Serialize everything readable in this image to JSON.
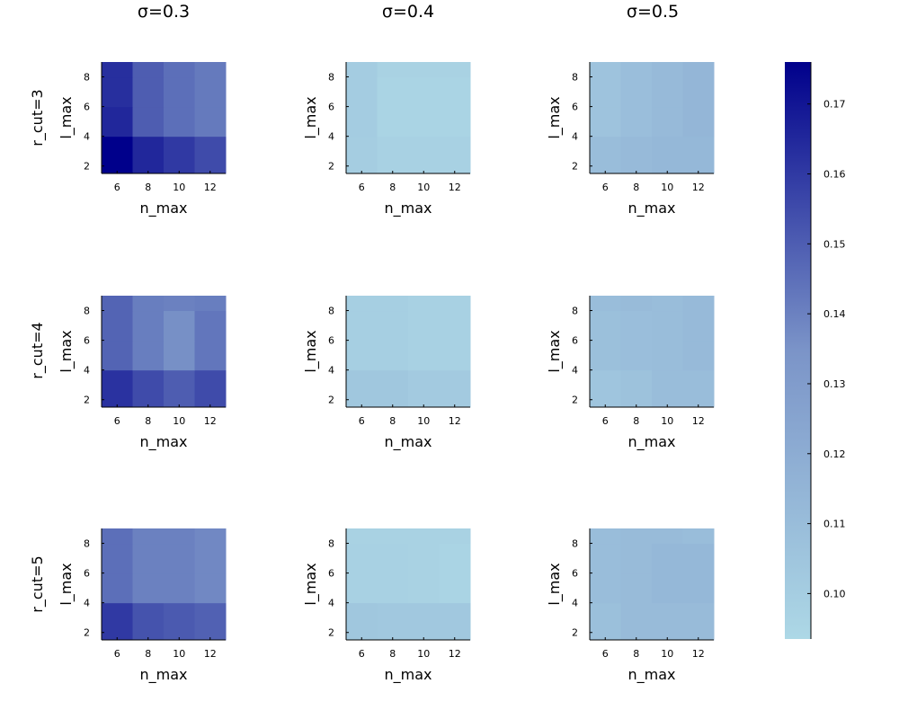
{
  "chart_data": {
    "type": "heatmap",
    "layout": "3x3 grid of heatmaps with shared colorbar",
    "column_titles": [
      "σ=0.3",
      "σ=0.4",
      "σ=0.5"
    ],
    "row_titles": [
      "r_cut=3",
      "r_cut=4",
      "r_cut=5"
    ],
    "xlabel": "n_max",
    "ylabel": "l_max",
    "x_values": [
      6,
      8,
      10,
      12
    ],
    "y_values": [
      3,
      5,
      7,
      9
    ],
    "xlim": [
      5,
      13
    ],
    "ylim": [
      1.5,
      9
    ],
    "x_ticks": [
      6,
      8,
      10,
      12
    ],
    "y_ticks": [
      2,
      4,
      6,
      8
    ],
    "colorbar": {
      "min": 0.0935,
      "max": 0.176,
      "ticks": [
        0.1,
        0.11,
        0.12,
        0.13,
        0.14,
        0.15,
        0.16,
        0.17
      ],
      "tick_labels": [
        "0.10",
        "0.11",
        "0.12",
        "0.13",
        "0.14",
        "0.15",
        "0.16",
        "0.17"
      ],
      "color_low": "#add8e6",
      "color_mid": "#7b94c8",
      "color_high": "#00008b"
    },
    "panels": [
      {
        "row": 0,
        "col": 0,
        "z": [
          [
            0.176,
            0.165,
            0.16,
            0.155
          ],
          [
            0.165,
            0.15,
            0.145,
            0.142
          ],
          [
            0.163,
            0.15,
            0.145,
            0.142
          ],
          [
            0.163,
            0.15,
            0.145,
            0.142
          ]
        ]
      },
      {
        "row": 0,
        "col": 1,
        "z": [
          [
            0.1,
            0.098,
            0.098,
            0.098
          ],
          [
            0.101,
            0.096,
            0.096,
            0.096
          ],
          [
            0.101,
            0.096,
            0.096,
            0.096
          ],
          [
            0.101,
            0.097,
            0.097,
            0.097
          ]
        ]
      },
      {
        "row": 0,
        "col": 2,
        "z": [
          [
            0.11,
            0.112,
            0.113,
            0.113
          ],
          [
            0.106,
            0.109,
            0.112,
            0.114
          ],
          [
            0.106,
            0.109,
            0.112,
            0.114
          ],
          [
            0.106,
            0.109,
            0.112,
            0.114
          ]
        ]
      },
      {
        "row": 1,
        "col": 0,
        "z": [
          [
            0.162,
            0.155,
            0.15,
            0.155
          ],
          [
            0.148,
            0.141,
            0.136,
            0.143
          ],
          [
            0.148,
            0.141,
            0.136,
            0.143
          ],
          [
            0.148,
            0.141,
            0.14,
            0.141
          ]
        ]
      },
      {
        "row": 1,
        "col": 1,
        "z": [
          [
            0.104,
            0.104,
            0.102,
            0.102
          ],
          [
            0.099,
            0.099,
            0.098,
            0.098
          ],
          [
            0.099,
            0.099,
            0.098,
            0.098
          ],
          [
            0.099,
            0.099,
            0.098,
            0.098
          ]
        ]
      },
      {
        "row": 1,
        "col": 2,
        "z": [
          [
            0.105,
            0.107,
            0.11,
            0.11
          ],
          [
            0.108,
            0.109,
            0.11,
            0.112
          ],
          [
            0.108,
            0.109,
            0.11,
            0.112
          ],
          [
            0.11,
            0.111,
            0.11,
            0.112
          ]
        ]
      },
      {
        "row": 2,
        "col": 0,
        "z": [
          [
            0.16,
            0.153,
            0.151,
            0.149
          ],
          [
            0.145,
            0.14,
            0.14,
            0.138
          ],
          [
            0.145,
            0.14,
            0.14,
            0.138
          ],
          [
            0.145,
            0.14,
            0.14,
            0.138
          ]
        ]
      },
      {
        "row": 2,
        "col": 1,
        "z": [
          [
            0.104,
            0.103,
            0.103,
            0.103
          ],
          [
            0.098,
            0.098,
            0.097,
            0.096
          ],
          [
            0.098,
            0.098,
            0.097,
            0.096
          ],
          [
            0.097,
            0.097,
            0.097,
            0.097
          ]
        ]
      },
      {
        "row": 2,
        "col": 2,
        "z": [
          [
            0.108,
            0.111,
            0.111,
            0.111
          ],
          [
            0.11,
            0.111,
            0.113,
            0.113
          ],
          [
            0.11,
            0.111,
            0.113,
            0.113
          ],
          [
            0.11,
            0.111,
            0.111,
            0.11
          ]
        ]
      }
    ]
  }
}
